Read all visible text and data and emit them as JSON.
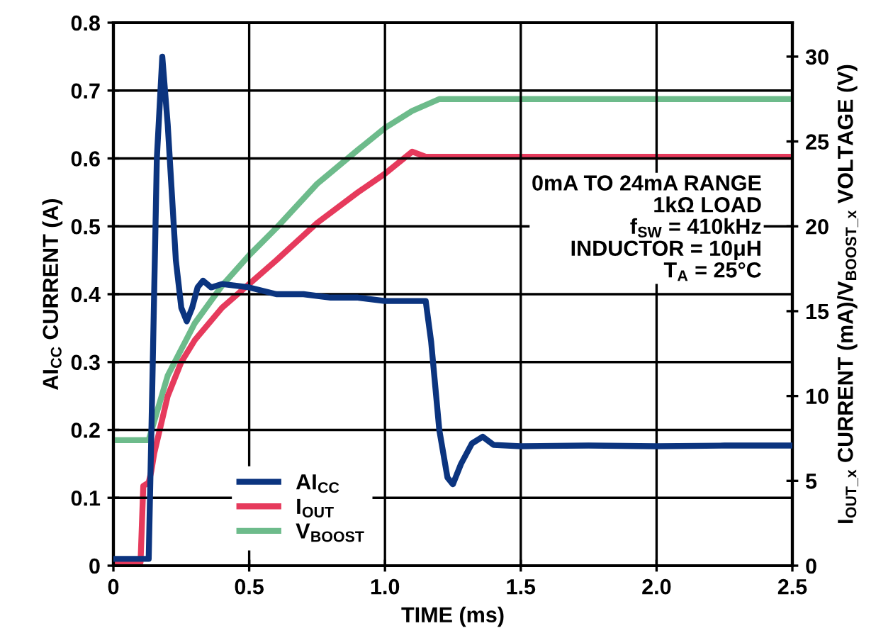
{
  "chart_data": {
    "type": "line",
    "xlabel": "TIME (ms)",
    "ylabel": "AI$_{CC}$ CURRENT (A)",
    "y2label": "I$_{OUT_x}$ CURRENT (mA)/V$_{BOOST_x}$ VOLTAGE (V)",
    "xlim": [
      0,
      2.5
    ],
    "xticks": [
      0,
      0.5,
      {
        "value": 1.0,
        "label": "1.0"
      },
      1.5,
      {
        "value": 2.0,
        "label": "2.0"
      },
      2.5
    ],
    "ylim": [
      0,
      0.8
    ],
    "yticks": [
      0,
      0.1,
      0.2,
      0.3,
      0.4,
      0.5,
      0.6,
      0.7,
      0.8
    ],
    "y2lim": [
      0,
      32
    ],
    "y2ticks": [
      0,
      5,
      10,
      15,
      20,
      25,
      30
    ],
    "grid": true,
    "legend": "bottom left",
    "line_style": "solid",
    "marker": "none",
    "series": [
      {
        "name": "AI$_{CC}$",
        "color": "#0b347f",
        "x": [
          0,
          0.13,
          0.14,
          0.16,
          0.18,
          0.2,
          0.23,
          0.25,
          0.27,
          0.29,
          0.31,
          0.33,
          0.36,
          0.4,
          0.5,
          0.6,
          0.7,
          0.8,
          0.9,
          1.0,
          1.1,
          1.15,
          1.17,
          1.2,
          1.23,
          1.25,
          1.28,
          1.32,
          1.36,
          1.4,
          1.5,
          1.75,
          2.0,
          2.25,
          2.5
        ],
        "values": [
          0.01,
          0.01,
          0.2,
          0.6,
          0.75,
          0.65,
          0.45,
          0.38,
          0.36,
          0.38,
          0.41,
          0.42,
          0.41,
          0.415,
          0.41,
          0.4,
          0.4,
          0.395,
          0.395,
          0.39,
          0.39,
          0.39,
          0.33,
          0.2,
          0.13,
          0.12,
          0.15,
          0.18,
          0.19,
          0.178,
          0.176,
          0.177,
          0.176,
          0.177,
          0.177
        ]
      },
      {
        "name": "I$_{OUT}$",
        "color": "#e63a5c",
        "axis": "y2",
        "x": [
          0,
          0.1,
          0.11,
          0.13,
          0.14,
          0.15,
          0.2,
          0.25,
          0.3,
          0.4,
          0.5,
          0.6,
          0.75,
          0.9,
          1.0,
          1.1,
          1.15,
          1.5,
          2.0,
          2.5
        ],
        "values": [
          0.2,
          0.2,
          4.7,
          4.9,
          5.6,
          6.6,
          10,
          12,
          13.3,
          15.2,
          16.6,
          18,
          20.2,
          22,
          23.1,
          24.4,
          24.1,
          24.1,
          24.1,
          24.1
        ]
      },
      {
        "name": "V$_{BOOST}$",
        "color": "#6dbb8b",
        "axis": "y2",
        "x": [
          0,
          0.13,
          0.15,
          0.2,
          0.3,
          0.4,
          0.5,
          0.6,
          0.75,
          0.9,
          1.0,
          1.1,
          1.2,
          1.5,
          2.0,
          2.5
        ],
        "values": [
          7.4,
          7.4,
          8.5,
          11.2,
          14.3,
          16.5,
          18.3,
          19.9,
          22.5,
          24.5,
          25.8,
          26.8,
          27.5,
          27.5,
          27.5,
          27.5
        ]
      }
    ],
    "annotations": [
      "0mA TO 24mA RANGE",
      "1kΩ LOAD",
      "f$_{SW}$ = 410kHz",
      "INDUCTOR = 10μH",
      "T$_{A}$ = 25°C"
    ]
  }
}
